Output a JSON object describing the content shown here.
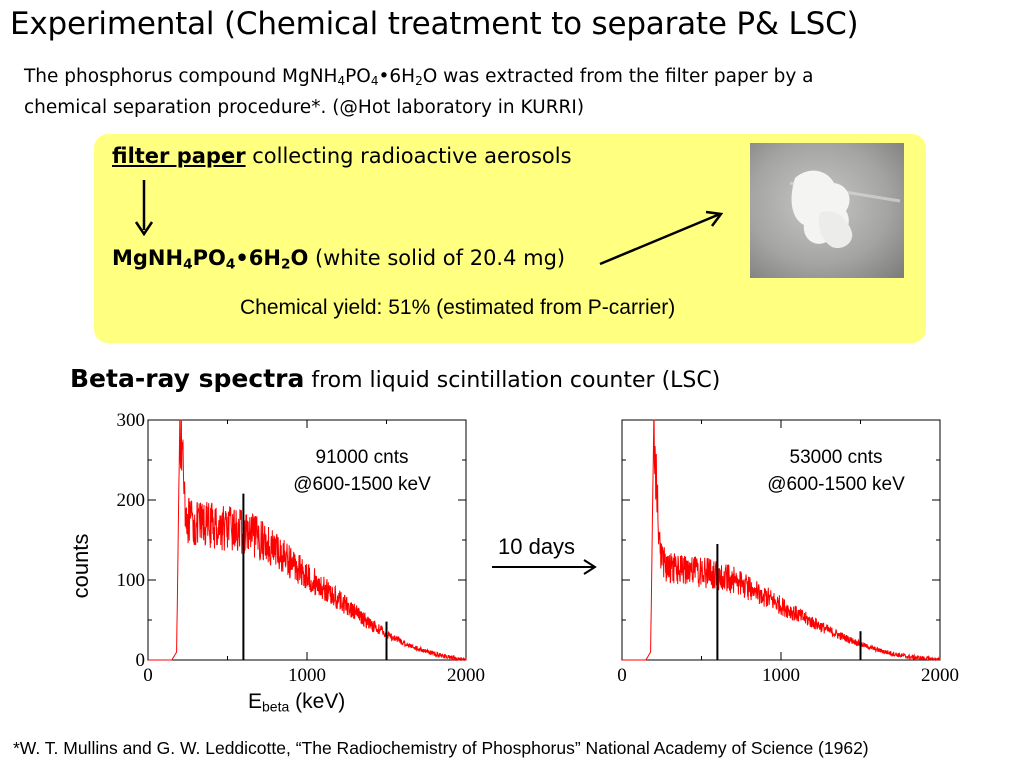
{
  "title": "Experimental  (Chemical treatment to separate P& LSC)",
  "intro": {
    "line1_a": "The phosphorus compound MgNH",
    "line1_sub1": "4",
    "line1_b": "PO",
    "line1_sub2": "4",
    "line1_c": "•6H",
    "line1_sub3": "2",
    "line1_d": "O was extracted from the filter paper by a",
    "line2": "chemical separation procedure*. (@Hot laboratory in KURRI)"
  },
  "box": {
    "filter_paper": "filter paper",
    "collecting": " collecting radioactive aerosols",
    "compound_a": "MgNH",
    "compound_sub1": "4",
    "compound_b": "PO",
    "compound_sub2": "4",
    "compound_c": "•6H",
    "compound_sub3": "2",
    "compound_d": "O",
    "compound_desc": " (white solid of 20.4 mg)",
    "yield": "Chemical yield: 51%  (estimated from P-carrier)"
  },
  "beta": {
    "bold": "Beta-ray spectra",
    "rest": " from liquid scintillation counter (LSC)"
  },
  "arrow_label": "10 days",
  "ylabel": "counts",
  "xlabel": {
    "main": "E",
    "sub": "beta",
    "unit": " (keV)"
  },
  "reference": "*W. T. Mullins and G. W. Leddicotte, “The Radiochemistry of Phosphorus” National Academy of Science (1962)",
  "chart_data": [
    {
      "type": "line",
      "annotation_line1": "91000 cnts",
      "annotation_line2": "@600-1500 keV",
      "xlim": [
        0,
        2000
      ],
      "ylim": [
        0,
        300
      ],
      "xticks": [
        0,
        1000,
        2000
      ],
      "yticks": [
        0,
        100,
        200,
        300
      ],
      "color": "#ff0000",
      "markers_keV": [
        600,
        1500
      ],
      "marker_heights": [
        208,
        48
      ],
      "series": [
        {
          "x": [
            0,
            50,
            100,
            150,
            180,
            200,
            220,
            240,
            260,
            280,
            300,
            350,
            400,
            500,
            600,
            700,
            800,
            900,
            1000,
            1100,
            1200,
            1300,
            1400,
            1500,
            1600,
            1700,
            1800,
            1900,
            1950,
            2000
          ],
          "y": [
            0,
            0,
            0,
            0,
            10,
            300,
            250,
            180,
            172,
            170,
            168,
            170,
            168,
            165,
            160,
            152,
            138,
            122,
            105,
            90,
            75,
            60,
            45,
            33,
            22,
            14,
            8,
            3,
            1,
            0
          ]
        }
      ]
    },
    {
      "type": "line",
      "annotation_line1": "53000 cnts",
      "annotation_line2": "@600-1500 keV",
      "xlim": [
        0,
        2000
      ],
      "ylim": [
        0,
        300
      ],
      "xticks": [
        0,
        1000,
        2000
      ],
      "yticks": [
        0,
        100,
        200,
        300
      ],
      "color": "#ff0000",
      "markers_keV": [
        600,
        1500
      ],
      "marker_heights": [
        145,
        36
      ],
      "series": [
        {
          "x": [
            0,
            50,
            100,
            150,
            180,
            200,
            220,
            240,
            260,
            280,
            300,
            350,
            400,
            500,
            600,
            700,
            800,
            900,
            1000,
            1100,
            1200,
            1300,
            1400,
            1500,
            1600,
            1700,
            1800,
            1900,
            1950,
            2000
          ],
          "y": [
            0,
            0,
            0,
            0,
            10,
            300,
            200,
            140,
            122,
            118,
            115,
            113,
            112,
            110,
            106,
            100,
            90,
            80,
            68,
            57,
            47,
            37,
            28,
            20,
            13,
            8,
            4,
            2,
            1,
            0
          ]
        }
      ]
    }
  ]
}
